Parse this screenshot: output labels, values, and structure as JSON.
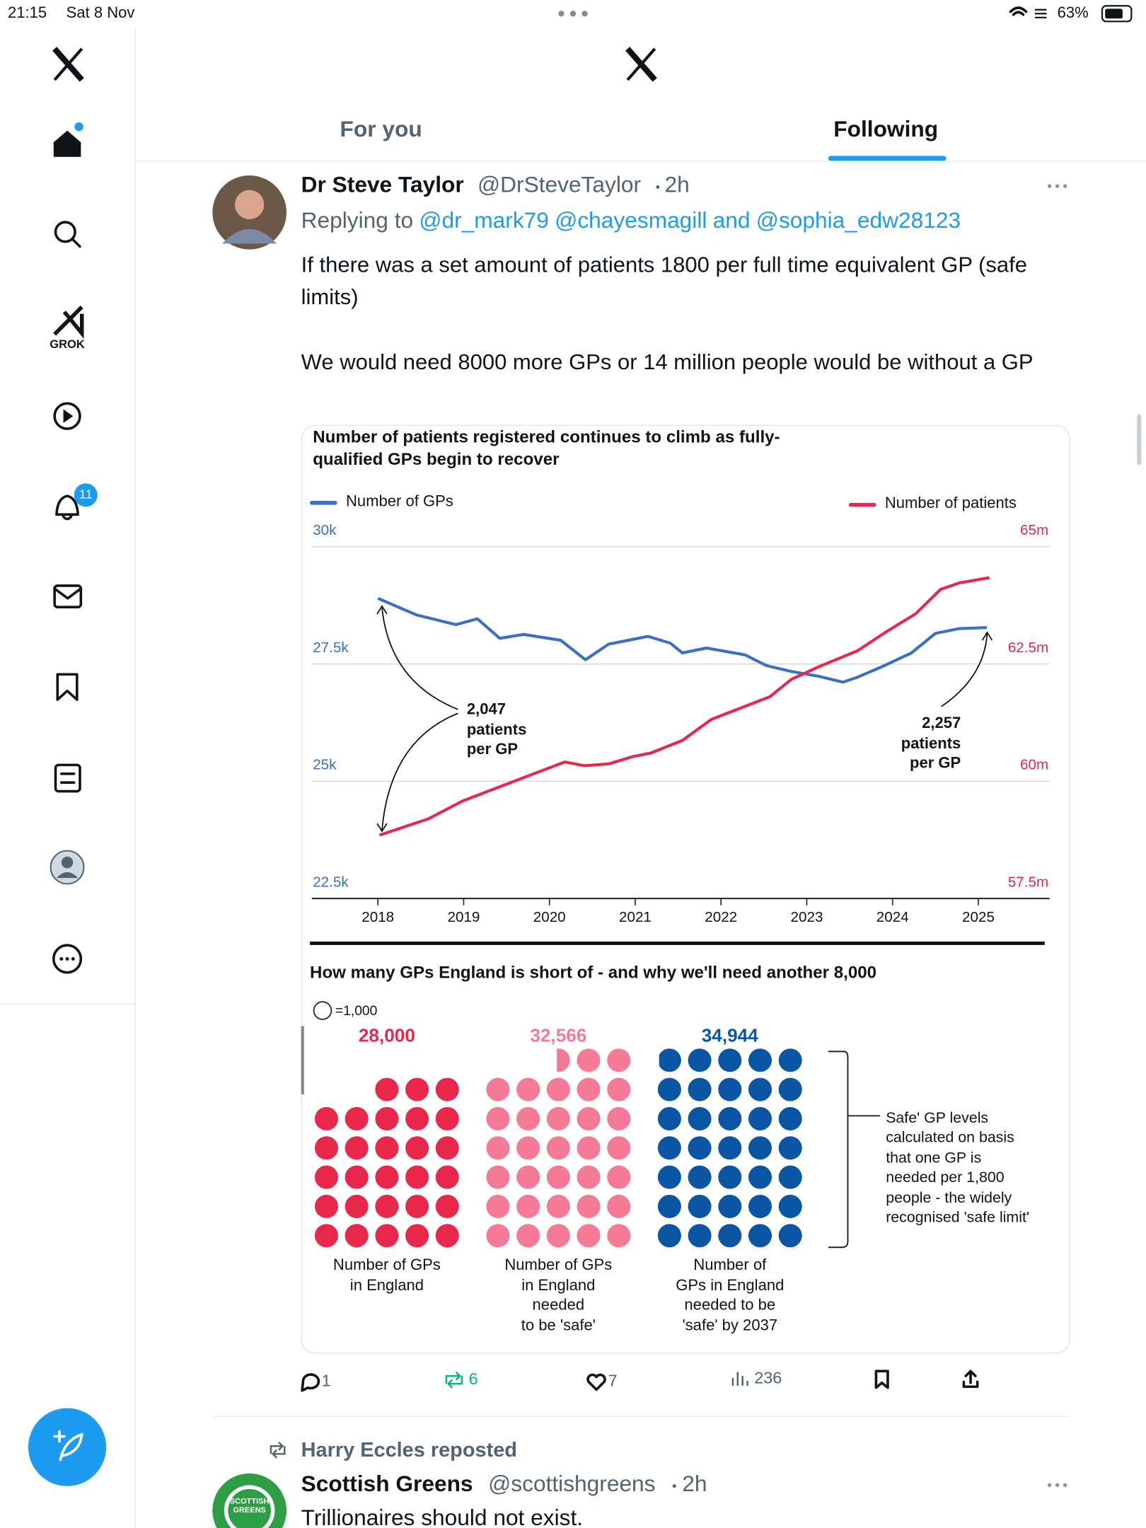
{
  "status_bar": {
    "time": "21:15",
    "date": "Sat 8 Nov",
    "battery": "63%"
  },
  "sidebar": {
    "grok_label": "GROK",
    "notification_count": 11
  },
  "tabs": [
    "For you",
    "Following"
  ],
  "tweet": {
    "author": "Dr Steve Taylor",
    "handle": "@DrSteveTaylor",
    "time": "2h",
    "replying_label": "Replying to",
    "replying_handles": [
      "@dr_mark79",
      "@chayesmagill"
    ],
    "replying_and": "and",
    "replying_last": "@sophia_edw28123",
    "text": [
      "If there was a set amount of patients 1800 per full time equivalent GP (safe limits)",
      "We would need 8000 more GPs or 14 million people would be without a GP"
    ],
    "stats": {
      "replies": 1,
      "reposts": 6,
      "likes": 7,
      "views": 236
    }
  },
  "next_tweet": {
    "reposted_by": "Harry Eccles reposted",
    "author": "Scottish Greens",
    "handle": "@scottishgreens",
    "time": "2h",
    "avatar_text": "SCOTTISH GREENS",
    "text": "Trillionaires should not exist."
  },
  "chart_data": [
    {
      "type": "line",
      "title": "Number of patients registered continues to climb as fully-qualified GPs begin to recover",
      "xlim": [
        2017.23,
        2025.83
      ],
      "xticks": [
        2018,
        2019,
        2020,
        2021,
        2022,
        2023,
        2024,
        2025
      ],
      "ylim": [
        22500,
        30000
      ],
      "yticks": [
        {
          "value": 22500,
          "label": "22.5k"
        },
        {
          "value": 25000,
          "label": "25k"
        },
        {
          "value": 27500,
          "label": "27.5k"
        },
        {
          "value": 30000,
          "label": "30k"
        }
      ],
      "y2lim": [
        57.5,
        65
      ],
      "y2ticks": [
        {
          "value": 57.5,
          "label": "57.5m"
        },
        {
          "value": 60,
          "label": "60m"
        },
        {
          "value": 62.5,
          "label": "62.5m"
        },
        {
          "value": 65,
          "label": "65m"
        }
      ],
      "grid": true,
      "series": [
        {
          "name": "Number of GPs",
          "color": "#3a6fc4",
          "x": [
            2018.0,
            2018.45,
            2018.91,
            2019.16,
            2019.42,
            2019.7,
            2020.13,
            2020.42,
            2020.69,
            2021.15,
            2021.41,
            2021.55,
            2021.83,
            2022.28,
            2022.53,
            2022.82,
            2023.14,
            2023.42,
            2023.59,
            2023.88,
            2024.22,
            2024.5,
            2024.78,
            2025.1
          ],
          "values": [
            28899,
            28546,
            28338,
            28462,
            28047,
            28130,
            28005,
            27590,
            27922,
            28089,
            27943,
            27735,
            27839,
            27694,
            27465,
            27341,
            27237,
            27112,
            27216,
            27444,
            27735,
            28151,
            28255,
            28276
          ]
        },
        {
          "name": "Number of patients",
          "color": "#e8274b",
          "axis": "y2",
          "x": [
            2018.02,
            2018.59,
            2018.99,
            2019.73,
            2020.18,
            2020.41,
            2020.69,
            2020.98,
            2021.18,
            2021.55,
            2021.89,
            2022.57,
            2022.82,
            2023.14,
            2023.59,
            2023.93,
            2024.27,
            2024.56,
            2024.78,
            2025.13
          ],
          "values": [
            58.85,
            59.2,
            59.58,
            60.1,
            60.41,
            60.33,
            60.37,
            60.53,
            60.6,
            60.87,
            61.32,
            61.8,
            62.17,
            62.44,
            62.78,
            63.19,
            63.57,
            64.09,
            64.23,
            64.34
          ]
        }
      ],
      "annotations": [
        "2,047\npatients\nper GP",
        "2,257\npatients\nper GP"
      ]
    },
    {
      "type": "pictogram",
      "title": "How many GPs England is short of - and why we'll need another 8,000",
      "unit": 1000,
      "unit_label": "=1,000",
      "categories": [
        "Number of GPs\nin England",
        "Number of GPs\nin England\nneeded\nto be 'safe'",
        "Number of\nGPs in England\nneeded to be\n'safe' by 2037"
      ],
      "values": [
        28000,
        32566,
        34944
      ],
      "value_labels": [
        "28,000",
        "32,566",
        "34,944"
      ],
      "colors": [
        "#e8274b",
        "#f47a96",
        "#0a55a4"
      ],
      "note": "Safe' GP levels calculated on basis that one GP is needed per 1,800 people - the widely recognised 'safe limit'"
    }
  ]
}
